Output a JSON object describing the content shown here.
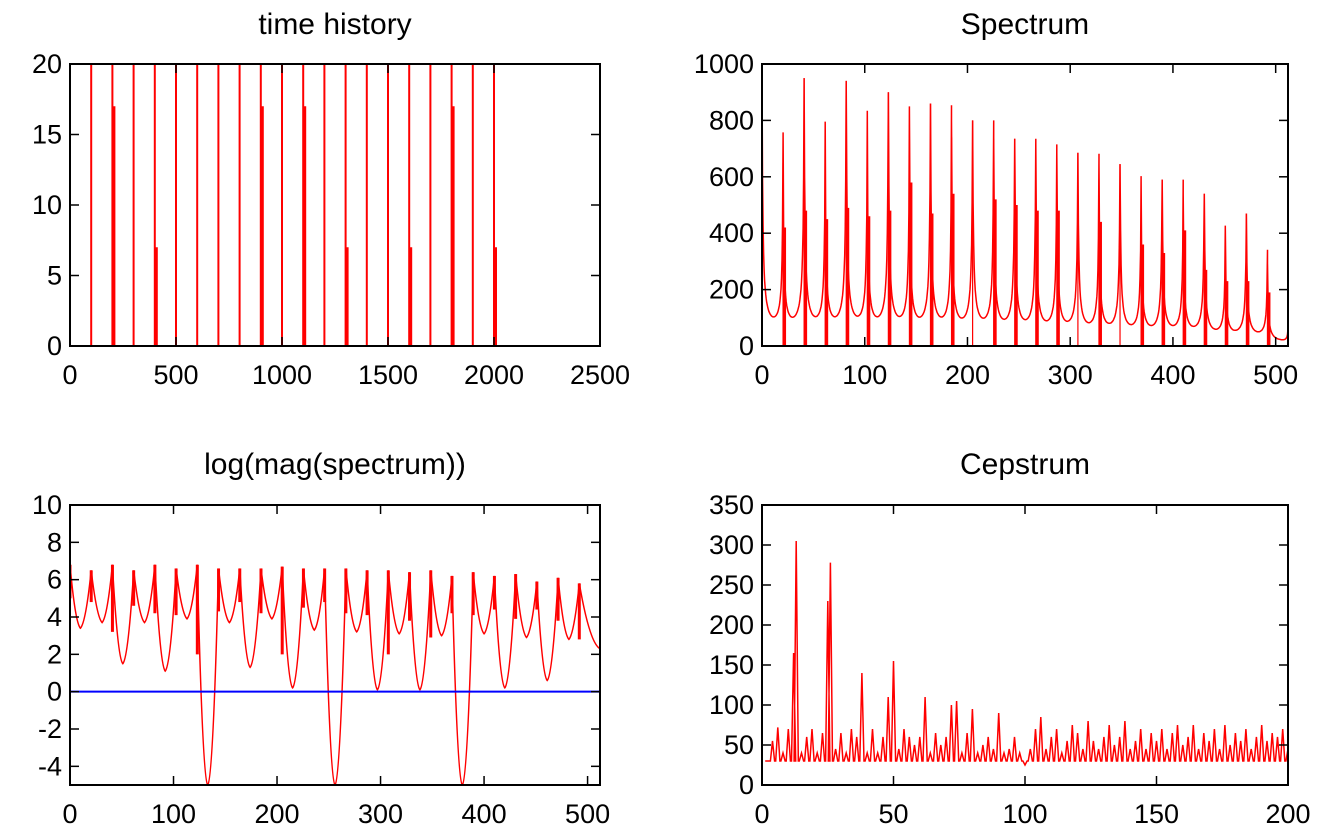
{
  "chart_data": [
    {
      "type": "line",
      "title": "time history",
      "xlabel": "",
      "ylabel": "",
      "xlim": [
        0,
        2500
      ],
      "ylim": [
        0,
        20
      ],
      "xticks": [
        0,
        500,
        1000,
        1500,
        2000,
        2500
      ],
      "yticks": [
        0,
        5,
        10,
        15,
        20
      ],
      "grid": false,
      "series": [
        {
          "color": "#ff0000",
          "kind": "impulses",
          "x": [
            100,
            200,
            300,
            400,
            500,
            600,
            700,
            800,
            900,
            1000,
            1100,
            1200,
            1300,
            1400,
            1500,
            1600,
            1700,
            1800,
            1900,
            2000
          ],
          "y": [
            20,
            20,
            20,
            20,
            20,
            20,
            20,
            20,
            20,
            20,
            20,
            20,
            20,
            20,
            20,
            20,
            20,
            20,
            20,
            20
          ],
          "inner_peaks": {
            "x": [
              200,
              400,
              900,
              1100,
              1300,
              1600,
              1800,
              2000
            ],
            "y": [
              17,
              7,
              17,
              17,
              7,
              7,
              17,
              7
            ]
          }
        }
      ]
    },
    {
      "type": "line",
      "title": "Spectrum",
      "xlabel": "",
      "ylabel": "",
      "xlim": [
        0,
        512
      ],
      "ylim": [
        0,
        1000
      ],
      "xticks": [
        0,
        100,
        200,
        300,
        400,
        500
      ],
      "yticks": [
        0,
        200,
        400,
        600,
        800,
        1000
      ],
      "grid": false,
      "series": [
        {
          "color": "#ff0000",
          "kind": "harmonic-peaks",
          "peak_x": [
            0,
            20.5,
            41,
            61.5,
            82,
            102.5,
            123,
            143.5,
            164,
            184.5,
            205,
            225.5,
            246,
            266.5,
            287,
            307.5,
            328,
            348.5,
            369,
            389.5,
            410,
            430.5,
            451,
            471.5,
            492
          ],
          "peak_y": [
            970,
            650,
            950,
            685,
            940,
            720,
            900,
            735,
            860,
            740,
            800,
            735,
            735,
            715,
            670,
            685,
            590,
            645,
            520,
            590,
            520,
            540,
            365,
            470,
            290
          ],
          "inner_y": [
            0,
            420,
            480,
            450,
            490,
            460,
            480,
            580,
            470,
            540,
            0,
            520,
            500,
            480,
            480,
            0,
            440,
            0,
            360,
            330,
            410,
            270,
            230,
            230,
            190
          ],
          "baseline": 45
        },
        {
          "color": "#0000ff",
          "kind": "constant",
          "y": 0
        }
      ]
    },
    {
      "type": "line",
      "title": "log(mag(spectrum))",
      "xlabel": "",
      "ylabel": "",
      "xlim": [
        0,
        512
      ],
      "ylim": [
        -5,
        10
      ],
      "xticks": [
        0,
        100,
        200,
        300,
        400,
        500
      ],
      "yticks": [
        -4,
        -2,
        0,
        2,
        4,
        6,
        8,
        10
      ],
      "grid": false,
      "series": [
        {
          "color": "#ff0000",
          "kind": "log-peaks",
          "peak_x": [
            0,
            20.5,
            41,
            61.5,
            82,
            102.5,
            123,
            143.5,
            164,
            184.5,
            205,
            225.5,
            246,
            266.5,
            287,
            307.5,
            328,
            348.5,
            369,
            389.5,
            410,
            430.5,
            451,
            471.5,
            492
          ],
          "peak_y": [
            6.8,
            6.5,
            6.8,
            6.5,
            6.8,
            6.6,
            6.8,
            6.6,
            6.6,
            6.6,
            6.7,
            6.6,
            6.6,
            6.6,
            6.5,
            6.5,
            6.4,
            6.5,
            6.2,
            6.4,
            6.2,
            6.3,
            5.9,
            6.1,
            5.8
          ],
          "trough_x": [
            10,
            31,
            51,
            72,
            92,
            113,
            133,
            154,
            174,
            195,
            215,
            236,
            256,
            277,
            297,
            318,
            338,
            359,
            379,
            400,
            420,
            441,
            461,
            482,
            512
          ],
          "trough_y": [
            3.4,
            3.7,
            1.5,
            3.7,
            1.1,
            3.9,
            -5,
            3.7,
            1.3,
            3.9,
            0.2,
            3.3,
            -5,
            3.2,
            0.1,
            3.1,
            0.1,
            3.0,
            -5,
            3.1,
            0.2,
            2.9,
            0.6,
            2.8,
            2.3
          ],
          "inner_y": [
            5,
            4.8,
            3.2,
            4.6,
            4.2,
            4.1,
            2,
            4.3,
            4.8,
            4.2,
            2,
            4.5,
            4.8,
            4.2,
            4.1,
            2,
            3.8,
            2.9,
            4.2,
            4.1,
            4.4,
            3.9,
            4.4,
            3.8,
            2.8
          ]
        },
        {
          "color": "#0000ff",
          "kind": "constant",
          "y": 0
        }
      ]
    },
    {
      "type": "line",
      "title": "Cepstrum",
      "xlabel": "",
      "ylabel": "",
      "xlim": [
        0,
        200
      ],
      "ylim": [
        0,
        350
      ],
      "xticks": [
        0,
        50,
        100,
        150,
        200
      ],
      "yticks": [
        0,
        50,
        100,
        150,
        200,
        250,
        300,
        350
      ],
      "grid": false,
      "series": [
        {
          "color": "#ff0000",
          "kind": "spikes",
          "x": [
            2,
            4,
            6,
            8,
            10,
            12,
            13,
            15,
            17,
            19,
            21,
            23,
            25,
            26,
            28,
            30,
            32,
            34,
            36,
            38,
            40,
            42,
            44,
            46,
            48,
            50,
            52,
            54,
            56,
            58,
            60,
            62,
            64,
            66,
            68,
            70,
            72,
            74,
            76,
            78,
            80,
            82,
            84,
            86,
            88,
            90,
            92,
            94,
            96,
            98,
            100,
            102,
            104,
            106,
            108,
            110,
            112,
            114,
            116,
            118,
            120,
            122,
            124,
            126,
            128,
            130,
            132,
            134,
            136,
            138,
            140,
            142,
            144,
            146,
            148,
            150,
            152,
            154,
            156,
            158,
            160,
            162,
            164,
            166,
            168,
            170,
            172,
            174,
            176,
            178,
            180,
            182,
            184,
            186,
            188,
            190,
            192,
            194,
            196,
            198,
            200
          ],
          "y": [
            30,
            55,
            72,
            40,
            70,
            165,
            305,
            40,
            60,
            70,
            40,
            65,
            230,
            278,
            45,
            65,
            40,
            70,
            60,
            140,
            40,
            70,
            40,
            60,
            110,
            155,
            45,
            70,
            60,
            50,
            60,
            110,
            40,
            65,
            50,
            60,
            100,
            105,
            40,
            65,
            95,
            40,
            50,
            60,
            45,
            90,
            40,
            45,
            60,
            40,
            25,
            45,
            70,
            85,
            45,
            60,
            70,
            40,
            55,
            75,
            65,
            45,
            80,
            55,
            45,
            60,
            75,
            50,
            60,
            80,
            45,
            55,
            70,
            45,
            65,
            55,
            70,
            45,
            65,
            75,
            50,
            60,
            75,
            45,
            65,
            55,
            70,
            45,
            75,
            50,
            65,
            55,
            70,
            45,
            60,
            75,
            55,
            65,
            60,
            70,
            45
          ],
          "baseline": 30
        },
        {
          "color": "#0000ff",
          "kind": "constant",
          "y": 0
        }
      ]
    }
  ]
}
